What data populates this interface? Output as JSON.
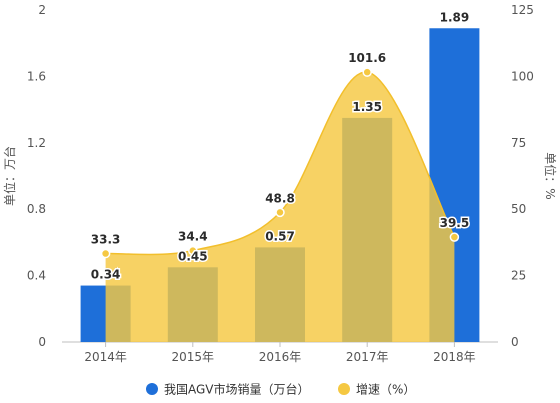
{
  "chart_data": {
    "type": "bar",
    "categories": [
      "2014年",
      "2015年",
      "2016年",
      "2017年",
      "2018年"
    ],
    "series": [
      {
        "name": "我国AGV市场销量（万台）",
        "type": "bar",
        "axis": "left",
        "values": [
          0.34,
          0.45,
          0.57,
          1.35,
          1.89
        ],
        "labels": [
          "0.34",
          "0.45",
          "0.57",
          "1.35",
          "1.89"
        ],
        "color": "#1e6fd9"
      },
      {
        "name": "增速（%）",
        "type": "area",
        "axis": "right",
        "values": [
          33.3,
          34.4,
          48.8,
          101.6,
          39.5
        ],
        "labels": [
          "33.3",
          "34.4",
          "48.8",
          "101.6",
          "39.5"
        ],
        "color": "#f5c842"
      }
    ],
    "y_left": {
      "label": "单位：万台",
      "ticks": [
        "0",
        "0.4",
        "0.8",
        "1.2",
        "1.6",
        "2"
      ],
      "range": [
        0,
        2
      ]
    },
    "y_right": {
      "label": "单位：%",
      "ticks": [
        "0",
        "25",
        "50",
        "75",
        "100",
        "125"
      ],
      "range": [
        0,
        125
      ]
    },
    "legend": {
      "placement": "bottom-center"
    },
    "grid": false
  }
}
